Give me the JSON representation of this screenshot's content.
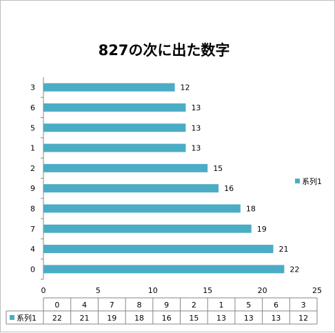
{
  "chart_data": {
    "type": "bar",
    "orientation": "horizontal",
    "title": "827の次に出た数字",
    "categories": [
      "0",
      "4",
      "7",
      "8",
      "9",
      "2",
      "1",
      "5",
      "6",
      "3"
    ],
    "series": [
      {
        "name": "系列1",
        "values": [
          22,
          21,
          19,
          18,
          16,
          15,
          13,
          13,
          13,
          12
        ]
      }
    ],
    "xlim": [
      0,
      25
    ],
    "x_ticks": [
      "0",
      "5",
      "10",
      "15",
      "20",
      "25"
    ],
    "data_labels": true,
    "grid": false,
    "legend": "right",
    "data_table": true,
    "bar_color": "#4bacc6"
  }
}
